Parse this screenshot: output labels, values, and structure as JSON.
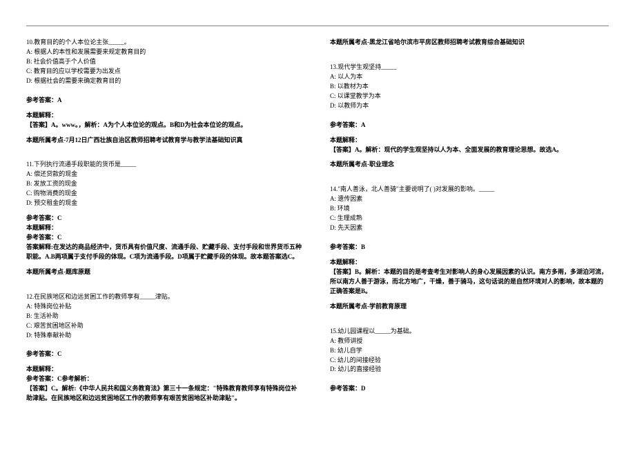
{
  "left": {
    "q10": {
      "stem": "10.教育目的的个人本位论主张_____。",
      "a": "A: 根据人的本性和发展需要来规定教育目的",
      "b": "B: 社会价值高于个人价值",
      "c": "C: 教育目的应以学校需要为出发点",
      "d": "D: 根据社会的需要来确定教育目的",
      "ans_label": "参考答案：A",
      "exp_label": "本题解释：",
      "exp_text": "【答案】A。www。，解析：A为个人本位论的观点。B和D为社会本位论的观点。",
      "src": "本题所属考点-7月12日广西壮族自治区教师招聘考试教育学与教学法基础知识真"
    },
    "q11": {
      "stem": "11.下列执行流通手段职能的货币是_____",
      "a": "A: 偿还贷款的现金",
      "b": "B: 发放工资的现金",
      "c": "C: 购物消费的现金",
      "d": "D: 预交租金的现金",
      "ans_label": "参考答案：C",
      "exp_label": "本题解释：",
      "exp_sub": "参考答案：C",
      "exp_text": "答案解释:在发达的商品经济中，货币具有价值尺度、流通手段、贮藏手段、支付手段和世界货币五种职能。A.B两项属于支付手段的体现。C项为流通手段。D项属于贮藏手段的体现。故本题答案选C。",
      "src": "本题所属考点-题库原题"
    },
    "q12": {
      "stem": "12.在民族地区和边远贫困工作的教师享有_____津贴。",
      "a": "A: 特殊岗位补贴",
      "b": "B: 生活补助",
      "c": "C: 艰苦贫困地区补助",
      "d": "D: 特殊奉献补助",
      "ans_label": "参考答案：C",
      "exp_label": "本题解释：",
      "exp_sub": "参考答案：C参考解析：",
      "exp_text": "【答案】C。解析:《中华人民共和国义务教育法》第三十一条规定：\"特殊教育教师享有特殊岗位补助津贴。在民族地区和边远贫困地区工作的教师享有艰苦贫困地区补助津贴\"。"
    }
  },
  "right": {
    "src_top": "本题所属考点-黑龙江省哈尔滨市平房区教师招聘考试教育综合基础知识",
    "q13": {
      "stem": "13.现代学生观坚持_____",
      "a": "A: 以人为本",
      "b": "B: 以教材为本",
      "c": "C: 以课堂教学为本",
      "d": "D: 以教师为本",
      "ans_label": "参考答案：A",
      "exp_label": "本题解释：",
      "exp_text": "【答案】A。解析：现代的学生观坚持以人为本、全面发展的教育理论思想。故选A。",
      "src": "本题所属考点-职业理念"
    },
    "q14": {
      "stem": "14.\"南人善泳，北人善骑\"主要说明了(  )对发展的影响。_____",
      "a": "A: 遗传因素",
      "b": "B: 环境",
      "c": "C: 生理成熟",
      "d": "D: 先天因素",
      "ans_label": "参考答案：B",
      "exp_label": "本题解释：",
      "exp_text": "【答案】B。解析：本题的目的是考查考生对影响人的身心发展因素的认识。南方多雨，多湖泊河流，所以南方人善于游泳，而北方地广，干燥，善于骑马，这句话说的是自然环境对人的影响，故本题的正确答案是B。",
      "src": "本题所属考点-学前教育原理"
    },
    "q15": {
      "stem": "15.幼儿园课程以_____为基础。",
      "a": "A: 教师讲授",
      "b": "B: 幼儿自学",
      "c": "C: 幼儿的间接经验",
      "d": "D: 幼儿的直接经验",
      "ans_label": "参考答案：D"
    }
  }
}
